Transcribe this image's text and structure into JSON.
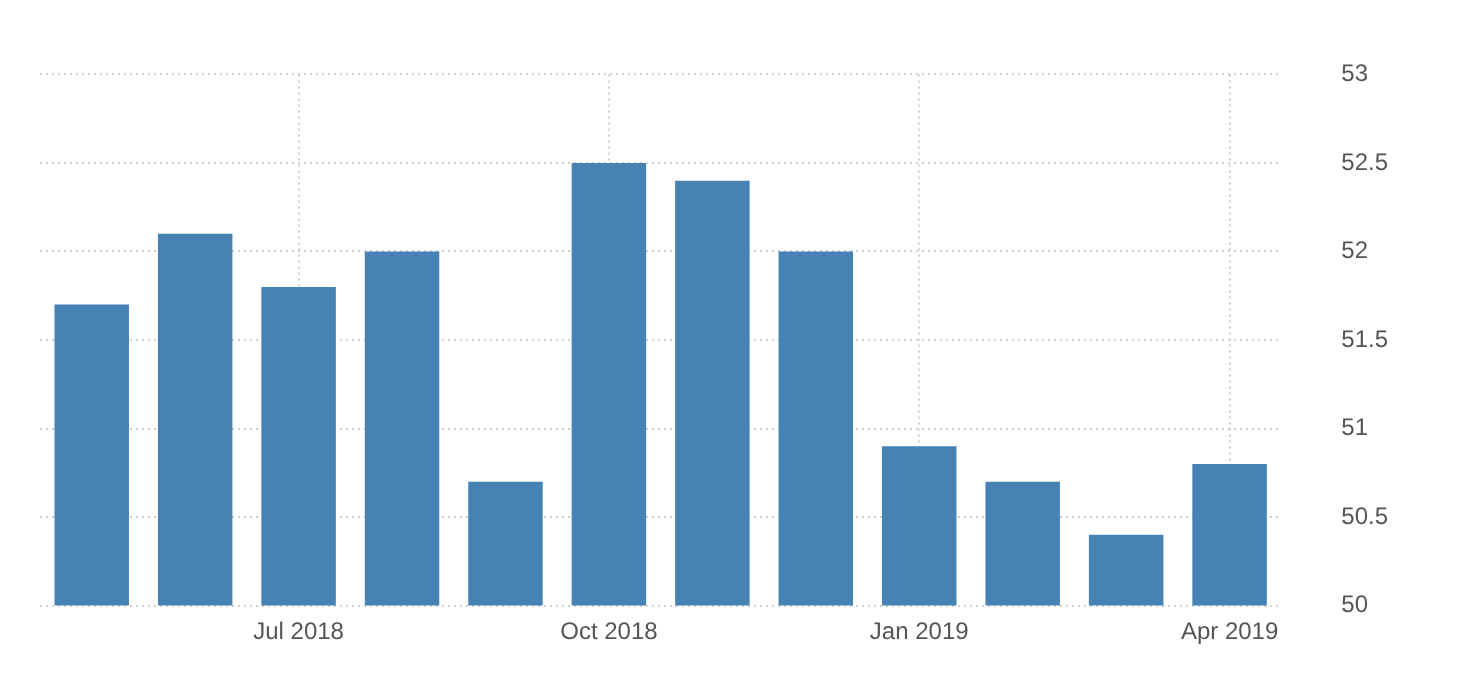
{
  "chart_data": {
    "type": "bar",
    "categories": [
      null,
      null,
      "Jul 2018",
      null,
      null,
      "Oct 2018",
      null,
      null,
      "Jan 2019",
      null,
      null,
      "Apr 2019"
    ],
    "values": [
      51.7,
      52.1,
      51.8,
      52.0,
      50.7,
      52.5,
      52.4,
      52.0,
      50.9,
      50.7,
      50.4,
      50.8
    ],
    "color": "#4682b4",
    "ylim": [
      50,
      53
    ],
    "yticks": [
      50,
      50.5,
      51,
      51.5,
      52,
      52.5,
      53
    ],
    "grid": true,
    "legend": false
  }
}
